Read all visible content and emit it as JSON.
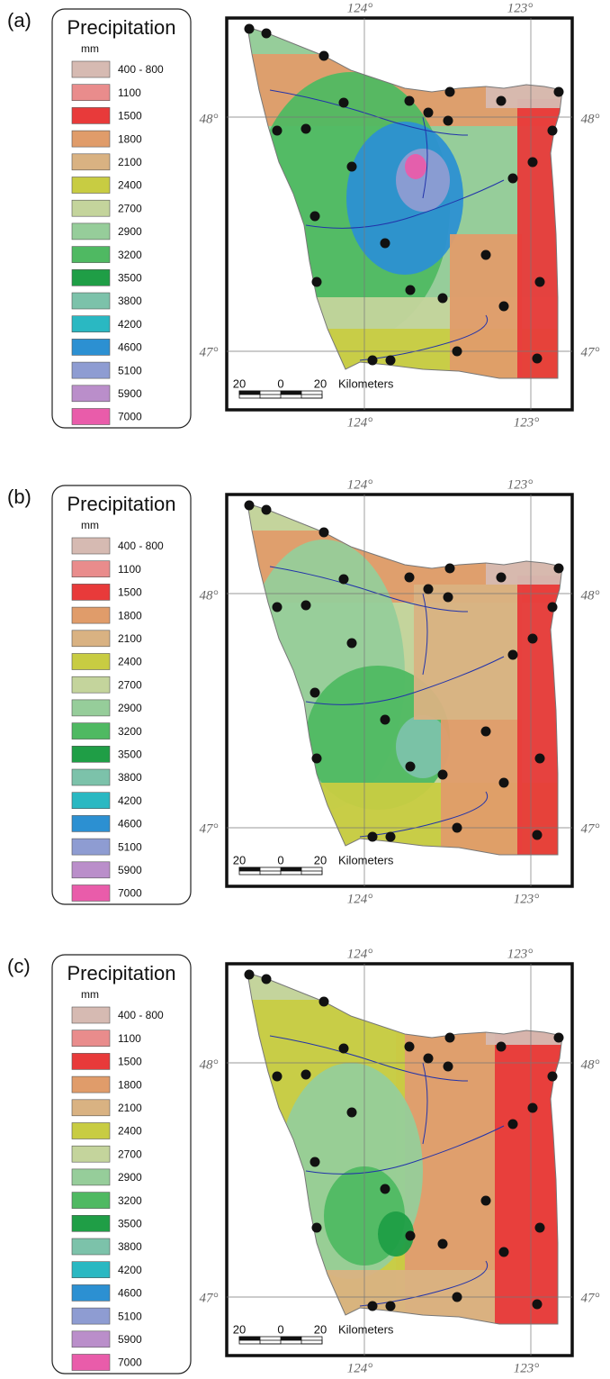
{
  "panels": [
    {
      "label": "(a)"
    },
    {
      "label": "(b)"
    },
    {
      "label": "(c)"
    }
  ],
  "legend": {
    "title": "Precipitation",
    "unit": "mm",
    "items": [
      {
        "label": "400 - 800",
        "color": "#d6bab2"
      },
      {
        "label": "1100",
        "color": "#e98c8c"
      },
      {
        "label": "1500",
        "color": "#e83a3a"
      },
      {
        "label": "1800",
        "color": "#e09c6a"
      },
      {
        "label": "2100",
        "color": "#d9b282"
      },
      {
        "label": "2400",
        "color": "#c8cc42"
      },
      {
        "label": "2700",
        "color": "#c4d49c"
      },
      {
        "label": "2900",
        "color": "#96cd9a"
      },
      {
        "label": "3200",
        "color": "#4fb962"
      },
      {
        "label": "3500",
        "color": "#1f9e46"
      },
      {
        "label": "3800",
        "color": "#7cc2aa"
      },
      {
        "label": "4200",
        "color": "#2ab8c2"
      },
      {
        "label": "4600",
        "color": "#2c90d2"
      },
      {
        "label": "5100",
        "color": "#8e9cd2"
      },
      {
        "label": "5900",
        "color": "#ba8eca"
      },
      {
        "label": "7000",
        "color": "#e95caa"
      }
    ]
  },
  "map": {
    "lon_labels": [
      "124°",
      "123°"
    ],
    "lat_labels": [
      "48°",
      "47°"
    ],
    "scale_labels": [
      "20",
      "0",
      "20"
    ],
    "scale_unit": "Kilometers"
  }
}
